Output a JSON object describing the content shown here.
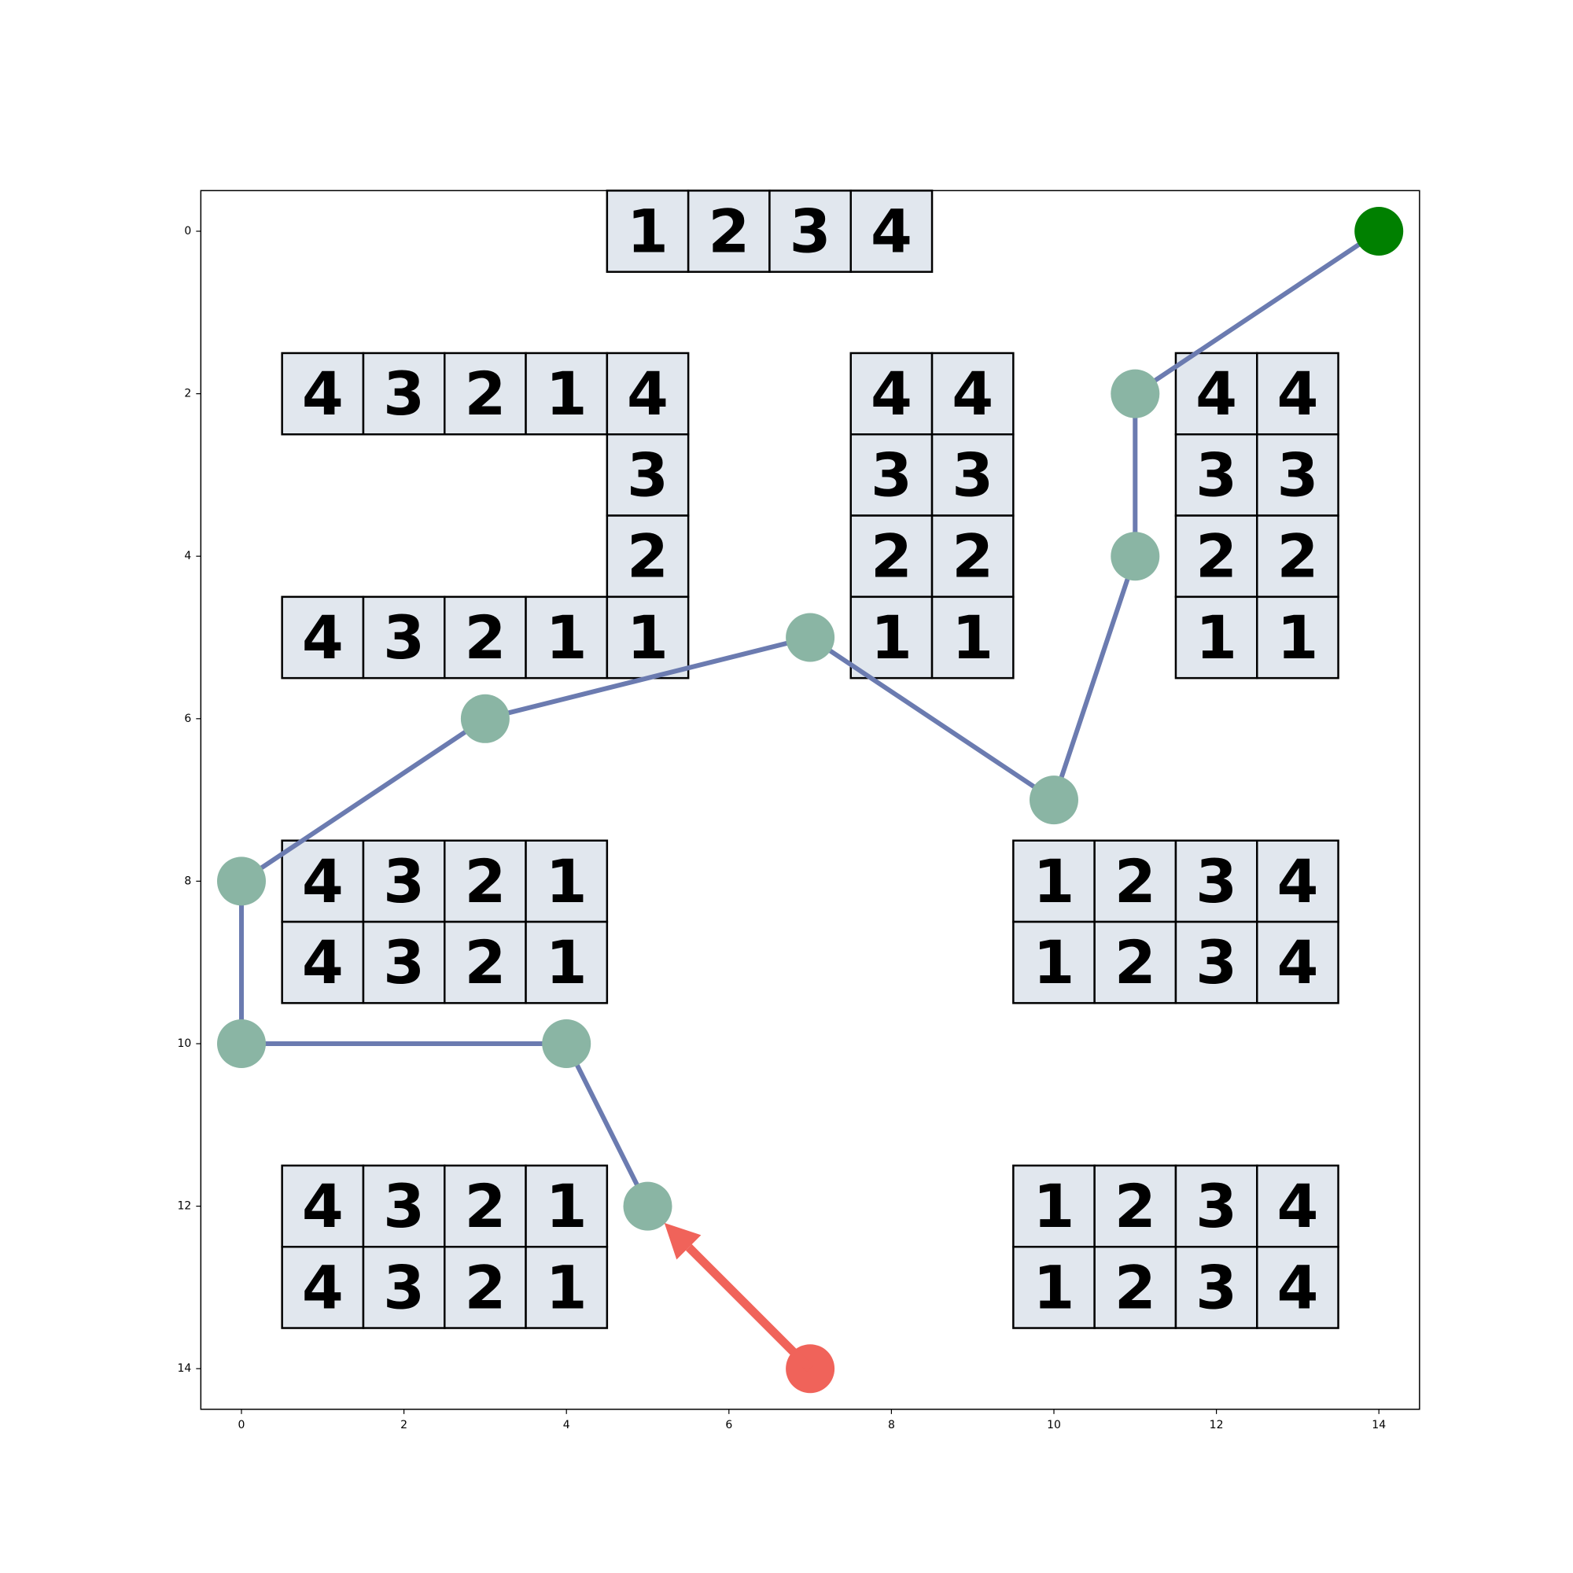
{
  "colors": {
    "cell_fill": "#e1e7ee",
    "cell_stroke": "#000000",
    "path_line": "#6b7bb0",
    "path_node": "#8ab5a4",
    "start_node": "#f0635a",
    "start_arrow": "#f0635a",
    "goal_node": "#008000"
  },
  "axes": {
    "x_ticks": [
      "0",
      "2",
      "4",
      "6",
      "8",
      "10",
      "12",
      "14"
    ],
    "y_ticks": [
      "0",
      "2",
      "4",
      "6",
      "8",
      "10",
      "12",
      "14"
    ],
    "x_range": [
      -0.5,
      14.5
    ],
    "y_range": [
      -0.5,
      14.5
    ],
    "y_inverted": true
  },
  "cells": [
    {
      "c": 5,
      "r": 0,
      "v": "1"
    },
    {
      "c": 6,
      "r": 0,
      "v": "2"
    },
    {
      "c": 7,
      "r": 0,
      "v": "3"
    },
    {
      "c": 8,
      "r": 0,
      "v": "4"
    },
    {
      "c": 1,
      "r": 2,
      "v": "4"
    },
    {
      "c": 2,
      "r": 2,
      "v": "3"
    },
    {
      "c": 3,
      "r": 2,
      "v": "2"
    },
    {
      "c": 4,
      "r": 2,
      "v": "1"
    },
    {
      "c": 5,
      "r": 2,
      "v": "4"
    },
    {
      "c": 5,
      "r": 3,
      "v": "3"
    },
    {
      "c": 5,
      "r": 4,
      "v": "2"
    },
    {
      "c": 1,
      "r": 5,
      "v": "4"
    },
    {
      "c": 2,
      "r": 5,
      "v": "3"
    },
    {
      "c": 3,
      "r": 5,
      "v": "2"
    },
    {
      "c": 4,
      "r": 5,
      "v": "1"
    },
    {
      "c": 5,
      "r": 5,
      "v": "1"
    },
    {
      "c": 8,
      "r": 2,
      "v": "4"
    },
    {
      "c": 9,
      "r": 2,
      "v": "4"
    },
    {
      "c": 8,
      "r": 3,
      "v": "3"
    },
    {
      "c": 9,
      "r": 3,
      "v": "3"
    },
    {
      "c": 8,
      "r": 4,
      "v": "2"
    },
    {
      "c": 9,
      "r": 4,
      "v": "2"
    },
    {
      "c": 8,
      "r": 5,
      "v": "1"
    },
    {
      "c": 9,
      "r": 5,
      "v": "1"
    },
    {
      "c": 12,
      "r": 2,
      "v": "4"
    },
    {
      "c": 13,
      "r": 2,
      "v": "4"
    },
    {
      "c": 12,
      "r": 3,
      "v": "3"
    },
    {
      "c": 13,
      "r": 3,
      "v": "3"
    },
    {
      "c": 12,
      "r": 4,
      "v": "2"
    },
    {
      "c": 13,
      "r": 4,
      "v": "2"
    },
    {
      "c": 12,
      "r": 5,
      "v": "1"
    },
    {
      "c": 13,
      "r": 5,
      "v": "1"
    },
    {
      "c": 1,
      "r": 8,
      "v": "4"
    },
    {
      "c": 2,
      "r": 8,
      "v": "3"
    },
    {
      "c": 3,
      "r": 8,
      "v": "2"
    },
    {
      "c": 4,
      "r": 8,
      "v": "1"
    },
    {
      "c": 1,
      "r": 9,
      "v": "4"
    },
    {
      "c": 2,
      "r": 9,
      "v": "3"
    },
    {
      "c": 3,
      "r": 9,
      "v": "2"
    },
    {
      "c": 4,
      "r": 9,
      "v": "1"
    },
    {
      "c": 10,
      "r": 8,
      "v": "1"
    },
    {
      "c": 11,
      "r": 8,
      "v": "2"
    },
    {
      "c": 12,
      "r": 8,
      "v": "3"
    },
    {
      "c": 13,
      "r": 8,
      "v": "4"
    },
    {
      "c": 10,
      "r": 9,
      "v": "1"
    },
    {
      "c": 11,
      "r": 9,
      "v": "2"
    },
    {
      "c": 12,
      "r": 9,
      "v": "3"
    },
    {
      "c": 13,
      "r": 9,
      "v": "4"
    },
    {
      "c": 1,
      "r": 12,
      "v": "4"
    },
    {
      "c": 2,
      "r": 12,
      "v": "3"
    },
    {
      "c": 3,
      "r": 12,
      "v": "2"
    },
    {
      "c": 4,
      "r": 12,
      "v": "1"
    },
    {
      "c": 1,
      "r": 13,
      "v": "4"
    },
    {
      "c": 2,
      "r": 13,
      "v": "3"
    },
    {
      "c": 3,
      "r": 13,
      "v": "2"
    },
    {
      "c": 4,
      "r": 13,
      "v": "1"
    },
    {
      "c": 10,
      "r": 12,
      "v": "1"
    },
    {
      "c": 11,
      "r": 12,
      "v": "2"
    },
    {
      "c": 12,
      "r": 12,
      "v": "3"
    },
    {
      "c": 13,
      "r": 12,
      "v": "4"
    },
    {
      "c": 10,
      "r": 13,
      "v": "1"
    },
    {
      "c": 11,
      "r": 13,
      "v": "2"
    },
    {
      "c": 12,
      "r": 13,
      "v": "3"
    },
    {
      "c": 13,
      "r": 13,
      "v": "4"
    }
  ],
  "path": [
    {
      "c": 5,
      "r": 12
    },
    {
      "c": 4,
      "r": 10
    },
    {
      "c": 0,
      "r": 10
    },
    {
      "c": 0,
      "r": 8
    },
    {
      "c": 3,
      "r": 6
    },
    {
      "c": 7,
      "r": 5
    },
    {
      "c": 10,
      "r": 7
    },
    {
      "c": 11,
      "r": 4
    },
    {
      "c": 11,
      "r": 2
    },
    {
      "c": 14,
      "r": 0
    }
  ],
  "start": {
    "c": 7,
    "r": 14
  },
  "goal": {
    "c": 14,
    "r": 0
  }
}
